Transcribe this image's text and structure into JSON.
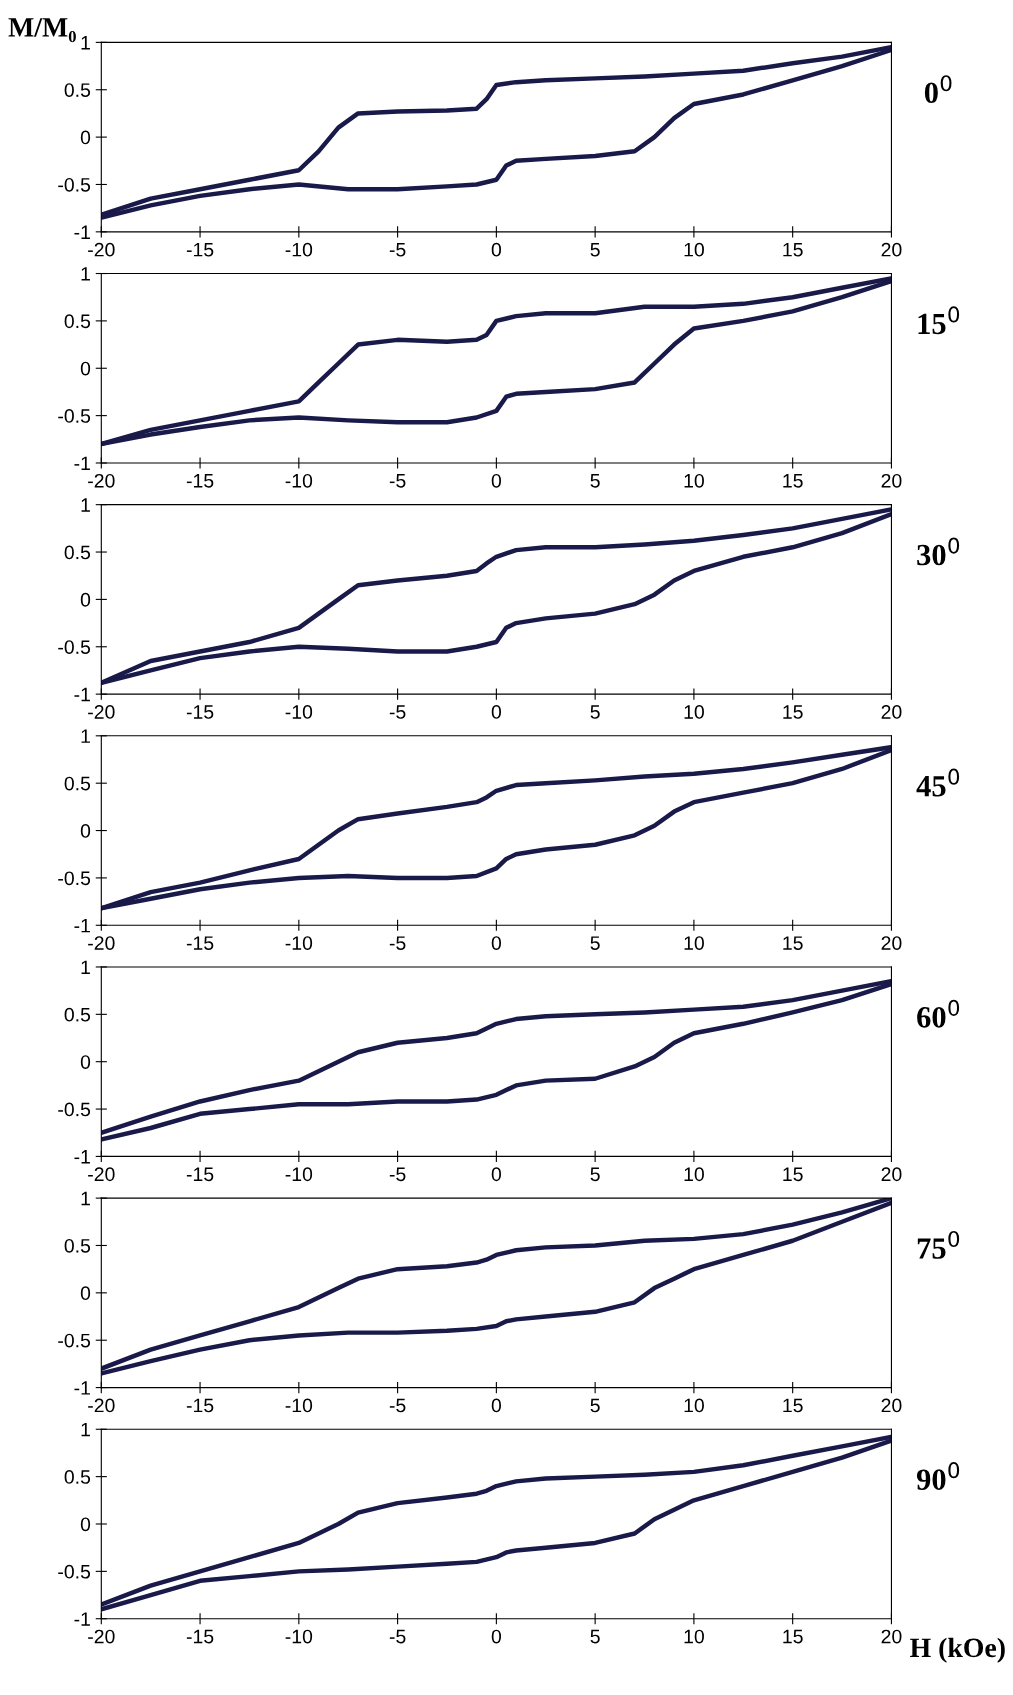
{
  "chart_data": [
    {
      "type": "line",
      "ylabel": "M/M₀",
      "annotations": [
        "0$^{0}$"
      ],
      "xlim": [
        -20,
        20
      ],
      "ylim": [
        -1,
        1
      ],
      "xticks": [
        -20,
        -15,
        -10,
        -5,
        0,
        5,
        10,
        15,
        20
      ],
      "yticks": [
        -1,
        -0.5,
        0,
        0.5,
        1
      ],
      "series": [
        {
          "color": "#1a1a4a",
          "x": [
            20,
            17.5,
            15,
            12.5,
            10,
            7.5,
            5,
            2.5,
            1,
            0,
            -0.5,
            -1,
            -2.5,
            -5,
            -7,
            -8,
            -9,
            -10,
            -12.5,
            -15,
            -17.5,
            -20
          ],
          "values": [
            0.95,
            0.85,
            0.78,
            0.7,
            0.67,
            0.64,
            0.62,
            0.6,
            0.58,
            0.55,
            0.4,
            0.3,
            0.28,
            0.27,
            0.25,
            0.1,
            -0.15,
            -0.35,
            -0.45,
            -0.55,
            -0.65,
            -0.82
          ]
        },
        {
          "color": "#1a1a4a",
          "x": [
            -20,
            -17.5,
            -15,
            -12.5,
            -10,
            -7.5,
            -5,
            -2.5,
            -1,
            0,
            0.5,
            1,
            2.5,
            5,
            7,
            8,
            9,
            10,
            12.5,
            15,
            17.5,
            20
          ],
          "values": [
            -0.85,
            -0.72,
            -0.62,
            -0.55,
            -0.5,
            -0.55,
            -0.55,
            -0.52,
            -0.5,
            -0.45,
            -0.3,
            -0.25,
            -0.23,
            -0.2,
            -0.15,
            0.0,
            0.2,
            0.35,
            0.45,
            0.6,
            0.75,
            0.92
          ]
        }
      ]
    },
    {
      "type": "line",
      "annotations": [
        "15$^{0}$"
      ],
      "xlim": [
        -20,
        20
      ],
      "ylim": [
        -1,
        1
      ],
      "xticks": [
        -20,
        -15,
        -10,
        -5,
        0,
        5,
        10,
        15,
        20
      ],
      "yticks": [
        -1,
        -0.5,
        0,
        0.5,
        1
      ],
      "series": [
        {
          "color": "#1a1a4a",
          "x": [
            20,
            17.5,
            15,
            12.5,
            10,
            7.5,
            5,
            2.5,
            1,
            0,
            -0.5,
            -1,
            -2.5,
            -5,
            -7,
            -8,
            -9,
            -10,
            -12.5,
            -15,
            -17.5,
            -20
          ],
          "values": [
            0.95,
            0.85,
            0.75,
            0.68,
            0.65,
            0.65,
            0.58,
            0.58,
            0.55,
            0.5,
            0.35,
            0.3,
            0.28,
            0.3,
            0.25,
            0.05,
            -0.15,
            -0.35,
            -0.45,
            -0.55,
            -0.65,
            -0.8
          ]
        },
        {
          "color": "#1a1a4a",
          "x": [
            -20,
            -17.5,
            -15,
            -12.5,
            -10,
            -7.5,
            -5,
            -2.5,
            -1,
            0,
            0.5,
            1,
            2.5,
            5,
            7,
            8,
            9,
            10,
            12.5,
            15,
            17.5,
            20
          ],
          "values": [
            -0.8,
            -0.7,
            -0.62,
            -0.55,
            -0.52,
            -0.55,
            -0.57,
            -0.57,
            -0.52,
            -0.45,
            -0.3,
            -0.27,
            -0.25,
            -0.22,
            -0.15,
            0.05,
            0.25,
            0.42,
            0.5,
            0.6,
            0.75,
            0.92
          ]
        }
      ]
    },
    {
      "type": "line",
      "annotations": [
        "30$^{0}$"
      ],
      "xlim": [
        -20,
        20
      ],
      "ylim": [
        -1,
        1
      ],
      "xticks": [
        -20,
        -15,
        -10,
        -5,
        0,
        5,
        10,
        15,
        20
      ],
      "yticks": [
        -1,
        -0.5,
        0,
        0.5,
        1
      ],
      "series": [
        {
          "color": "#1a1a4a",
          "x": [
            20,
            17.5,
            15,
            12.5,
            10,
            7.5,
            5,
            2.5,
            1,
            0,
            -0.5,
            -1,
            -2.5,
            -5,
            -7,
            -8,
            -9,
            -10,
            -12.5,
            -15,
            -17.5,
            -20
          ],
          "values": [
            0.95,
            0.85,
            0.75,
            0.68,
            0.62,
            0.58,
            0.55,
            0.55,
            0.52,
            0.45,
            0.38,
            0.3,
            0.25,
            0.2,
            0.15,
            0.0,
            -0.15,
            -0.3,
            -0.45,
            -0.55,
            -0.65,
            -0.88
          ]
        },
        {
          "color": "#1a1a4a",
          "x": [
            -20,
            -17.5,
            -15,
            -12.5,
            -10,
            -7.5,
            -5,
            -2.5,
            -1,
            0,
            0.5,
            1,
            2.5,
            5,
            7,
            8,
            9,
            10,
            12.5,
            15,
            17.5,
            20
          ],
          "values": [
            -0.88,
            -0.75,
            -0.62,
            -0.55,
            -0.5,
            -0.52,
            -0.55,
            -0.55,
            -0.5,
            -0.45,
            -0.3,
            -0.25,
            -0.2,
            -0.15,
            -0.05,
            0.05,
            0.2,
            0.3,
            0.45,
            0.55,
            0.7,
            0.9
          ]
        }
      ]
    },
    {
      "type": "line",
      "annotations": [
        "45$^{0}$"
      ],
      "xlim": [
        -20,
        20
      ],
      "ylim": [
        -1,
        1
      ],
      "xticks": [
        -20,
        -15,
        -10,
        -5,
        0,
        5,
        10,
        15,
        20
      ],
      "yticks": [
        -1,
        -0.5,
        0,
        0.5,
        1
      ],
      "series": [
        {
          "color": "#1a1a4a",
          "x": [
            20,
            17.5,
            15,
            12.5,
            10,
            7.5,
            5,
            2.5,
            1,
            0,
            -0.5,
            -1,
            -2.5,
            -5,
            -7,
            -8,
            -9,
            -10,
            -12.5,
            -15,
            -17.5,
            -20
          ],
          "values": [
            0.88,
            0.8,
            0.72,
            0.65,
            0.6,
            0.57,
            0.53,
            0.5,
            0.48,
            0.42,
            0.35,
            0.3,
            0.25,
            0.18,
            0.12,
            0.0,
            -0.15,
            -0.3,
            -0.42,
            -0.55,
            -0.65,
            -0.82
          ]
        },
        {
          "color": "#1a1a4a",
          "x": [
            -20,
            -17.5,
            -15,
            -12.5,
            -10,
            -7.5,
            -5,
            -2.5,
            -1,
            0,
            0.5,
            1,
            2.5,
            5,
            7,
            8,
            9,
            10,
            12.5,
            15,
            17.5,
            20
          ],
          "values": [
            -0.82,
            -0.72,
            -0.62,
            -0.55,
            -0.5,
            -0.48,
            -0.5,
            -0.5,
            -0.48,
            -0.4,
            -0.3,
            -0.25,
            -0.2,
            -0.15,
            -0.05,
            0.05,
            0.2,
            0.3,
            0.4,
            0.5,
            0.65,
            0.85
          ]
        }
      ]
    },
    {
      "type": "line",
      "annotations": [
        "60$^{0}$"
      ],
      "xlim": [
        -20,
        20
      ],
      "ylim": [
        -1,
        1
      ],
      "xticks": [
        -20,
        -15,
        -10,
        -5,
        0,
        5,
        10,
        15,
        20
      ],
      "yticks": [
        -1,
        -0.5,
        0,
        0.5,
        1
      ],
      "series": [
        {
          "color": "#1a1a4a",
          "x": [
            20,
            17.5,
            15,
            12.5,
            10,
            7.5,
            5,
            2.5,
            1,
            0,
            -0.5,
            -1,
            -2.5,
            -5,
            -7,
            -8,
            -9,
            -10,
            -12.5,
            -15,
            -17.5,
            -20
          ],
          "values": [
            0.85,
            0.75,
            0.65,
            0.58,
            0.55,
            0.52,
            0.5,
            0.48,
            0.45,
            0.4,
            0.35,
            0.3,
            0.25,
            0.2,
            0.1,
            0.0,
            -0.1,
            -0.2,
            -0.3,
            -0.42,
            -0.58,
            -0.75
          ]
        },
        {
          "color": "#1a1a4a",
          "x": [
            -20,
            -17.5,
            -15,
            -12.5,
            -10,
            -7.5,
            -5,
            -2.5,
            -1,
            0,
            0.5,
            1,
            2.5,
            5,
            7,
            8,
            9,
            10,
            12.5,
            15,
            17.5,
            20
          ],
          "values": [
            -0.82,
            -0.7,
            -0.55,
            -0.5,
            -0.45,
            -0.45,
            -0.42,
            -0.42,
            -0.4,
            -0.35,
            -0.3,
            -0.25,
            -0.2,
            -0.18,
            -0.05,
            0.05,
            0.2,
            0.3,
            0.4,
            0.52,
            0.65,
            0.82
          ]
        }
      ]
    },
    {
      "type": "line",
      "annotations": [
        "75$^{0}$"
      ],
      "xlim": [
        -20,
        20
      ],
      "ylim": [
        -1,
        1
      ],
      "xticks": [
        -20,
        -15,
        -10,
        -5,
        0,
        5,
        10,
        15,
        20
      ],
      "yticks": [
        -1,
        -0.5,
        0,
        0.5,
        1
      ],
      "series": [
        {
          "color": "#1a1a4a",
          "x": [
            20,
            17.5,
            15,
            12.5,
            10,
            7.5,
            5,
            2.5,
            1,
            0,
            -0.5,
            -1,
            -2.5,
            -5,
            -7,
            -8,
            -9,
            -10,
            -12.5,
            -15,
            -17.5,
            -20
          ],
          "values": [
            1.0,
            0.85,
            0.72,
            0.62,
            0.57,
            0.55,
            0.5,
            0.48,
            0.45,
            0.4,
            0.35,
            0.32,
            0.28,
            0.25,
            0.15,
            0.05,
            -0.05,
            -0.15,
            -0.3,
            -0.45,
            -0.6,
            -0.8
          ]
        },
        {
          "color": "#1a1a4a",
          "x": [
            -20,
            -17.5,
            -15,
            -12.5,
            -10,
            -7.5,
            -5,
            -2.5,
            -1,
            0,
            0.5,
            1,
            2.5,
            5,
            7,
            8,
            9,
            10,
            12.5,
            15,
            17.5,
            20
          ],
          "values": [
            -0.85,
            -0.72,
            -0.6,
            -0.5,
            -0.45,
            -0.42,
            -0.42,
            -0.4,
            -0.38,
            -0.35,
            -0.3,
            -0.28,
            -0.25,
            -0.2,
            -0.1,
            0.05,
            0.15,
            0.25,
            0.4,
            0.55,
            0.75,
            0.95
          ]
        }
      ]
    },
    {
      "type": "line",
      "annotations": [
        "90$^{0}$"
      ],
      "xlabel": "H (kOe)",
      "xlim": [
        -20,
        20
      ],
      "ylim": [
        -1,
        1
      ],
      "xticks": [
        -20,
        -15,
        -10,
        -5,
        0,
        5,
        10,
        15,
        20
      ],
      "yticks": [
        -1,
        -0.5,
        0,
        0.5,
        1
      ],
      "series": [
        {
          "color": "#1a1a4a",
          "x": [
            20,
            17.5,
            15,
            12.5,
            10,
            7.5,
            5,
            2.5,
            1,
            0,
            -0.5,
            -1,
            -2.5,
            -5,
            -7,
            -8,
            -9,
            -10,
            -12.5,
            -15,
            -17.5,
            -20
          ],
          "values": [
            0.92,
            0.82,
            0.72,
            0.62,
            0.55,
            0.52,
            0.5,
            0.48,
            0.45,
            0.4,
            0.35,
            0.32,
            0.28,
            0.22,
            0.12,
            0.0,
            -0.1,
            -0.2,
            -0.35,
            -0.5,
            -0.65,
            -0.85
          ]
        },
        {
          "color": "#1a1a4a",
          "x": [
            -20,
            -17.5,
            -15,
            -12.5,
            -10,
            -7.5,
            -5,
            -2.5,
            -1,
            0,
            0.5,
            1,
            2.5,
            5,
            7,
            8,
            9,
            10,
            12.5,
            15,
            17.5,
            20
          ],
          "values": [
            -0.9,
            -0.75,
            -0.6,
            -0.55,
            -0.5,
            -0.48,
            -0.45,
            -0.42,
            -0.4,
            -0.35,
            -0.3,
            -0.28,
            -0.25,
            -0.2,
            -0.1,
            0.05,
            0.15,
            0.25,
            0.4,
            0.55,
            0.7,
            0.88
          ]
        }
      ]
    }
  ]
}
